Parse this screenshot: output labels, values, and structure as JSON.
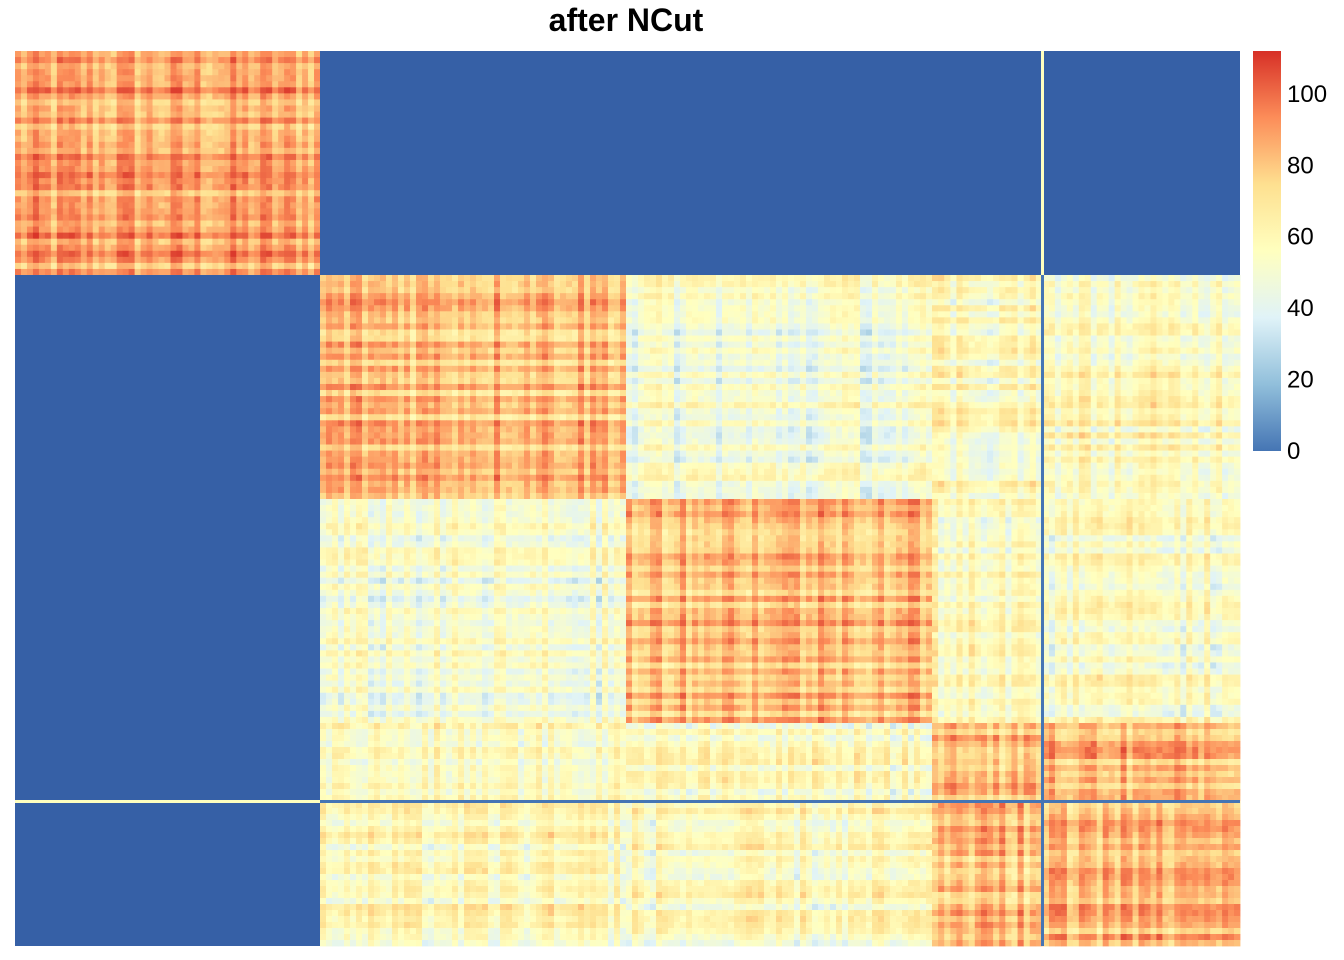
{
  "chart_data": {
    "type": "heatmap",
    "title": "after NCut",
    "xlabel": "",
    "ylabel": "",
    "clusters": [
      {
        "size": 76,
        "within_mean": 88
      },
      {
        "size": 56,
        "within_mean": 82
      },
      {
        "size": 56,
        "within_mean": 84
      },
      {
        "size": 20,
        "within_mean": 84
      },
      {
        "size": 20,
        "within_mean": 82
      },
      {
        "size": 48,
        "within_mean": 82
      }
    ],
    "between_means": [
      [
        88,
        0,
        0,
        0,
        0,
        0
      ],
      [
        0,
        82,
        50,
        58,
        58,
        58
      ],
      [
        0,
        50,
        84,
        55,
        55,
        55
      ],
      [
        0,
        58,
        55,
        84,
        84,
        84
      ],
      [
        0,
        58,
        55,
        84,
        82,
        82
      ],
      [
        0,
        58,
        55,
        82,
        82,
        82
      ]
    ],
    "row_separators_after_cluster": [
      0,
      4
    ],
    "column_separators_after_cluster": [
      0,
      4
    ],
    "colorbar": {
      "min": 0,
      "max": 112,
      "ticks": [
        "0",
        "20",
        "40",
        "60",
        "80",
        "100"
      ],
      "tick_values": [
        0,
        20,
        40,
        60,
        80,
        100
      ],
      "colors": [
        "#4575b4",
        "#91bfdb",
        "#e0f3f8",
        "#ffffbf",
        "#fee090",
        "#fc8d59",
        "#d73027"
      ]
    },
    "colors": {
      "separator_row": "#ffffbf",
      "separator_col": "#4575b4",
      "low": "#3660a6"
    }
  }
}
